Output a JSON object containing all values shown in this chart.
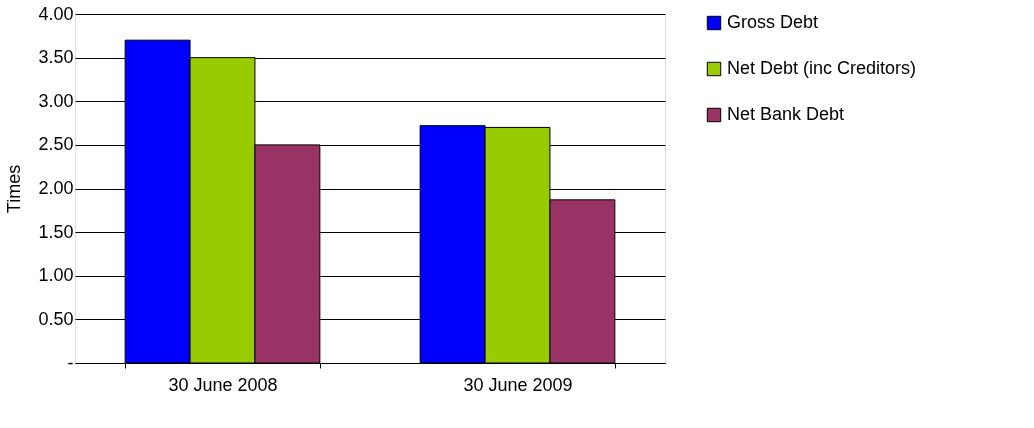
{
  "chart_data": {
    "type": "bar",
    "ylabel": "Times",
    "categories": [
      "30 June 2008",
      "30 June 2009"
    ],
    "series": [
      {
        "name": "Gross Debt",
        "color": "#0000ff",
        "values": [
          3.7,
          2.72
        ]
      },
      {
        "name": "Net Debt (inc Creditors)",
        "color": "#99cc00",
        "values": [
          3.5,
          2.7
        ]
      },
      {
        "name": "Net  Bank Debt",
        "color": "#993366",
        "values": [
          2.5,
          1.87
        ]
      }
    ],
    "ylim": [
      0,
      4
    ],
    "yticks": [
      {
        "value": 0,
        "label": "-"
      },
      {
        "value": 0.5,
        "label": "0.50"
      },
      {
        "value": 1,
        "label": "1.00"
      },
      {
        "value": 1.5,
        "label": "1.50"
      },
      {
        "value": 2,
        "label": "2.00"
      },
      {
        "value": 2.5,
        "label": "2.50"
      },
      {
        "value": 3,
        "label": "3.00"
      },
      {
        "value": 3.5,
        "label": "3.50"
      },
      {
        "value": 4,
        "label": "4.00"
      }
    ],
    "grid": "y",
    "legend": "right"
  }
}
